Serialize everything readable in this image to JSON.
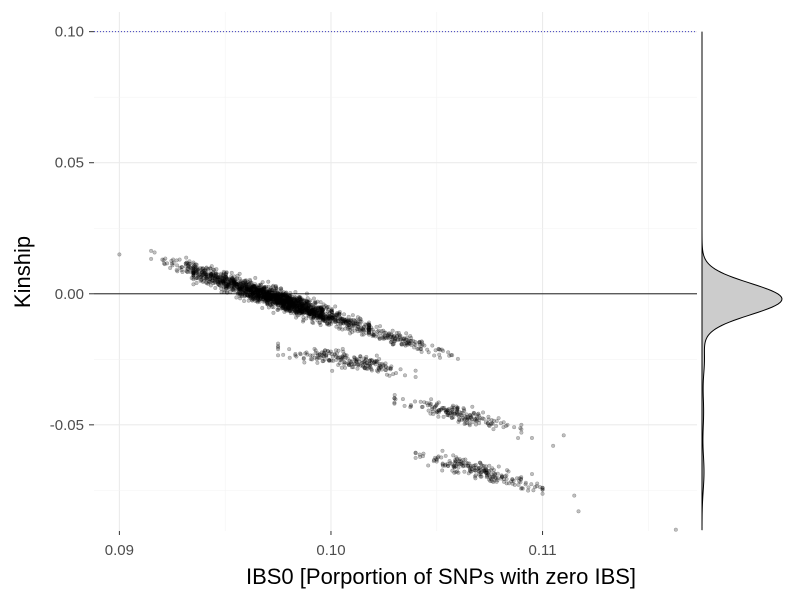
{
  "chart_data": {
    "type": "scatter",
    "xlabel": "IBS0 [Porportion of SNPs with zero IBS]",
    "ylabel": "Kinship",
    "xlim": [
      0.0888,
      0.1173
    ],
    "ylim": [
      -0.0905,
      0.1075
    ],
    "x_ticks": [
      {
        "value": 0.09,
        "label": "0.09"
      },
      {
        "value": 0.1,
        "label": "0.10"
      },
      {
        "value": 0.11,
        "label": "0.11"
      }
    ],
    "y_ticks": [
      {
        "value": 0.1,
        "label": "0.10"
      },
      {
        "value": 0.05,
        "label": "0.05"
      },
      {
        "value": 0.0,
        "label": "0.00"
      },
      {
        "value": -0.05,
        "label": "-0.05"
      }
    ],
    "grid": true,
    "reference_lines": [
      {
        "axis": "y",
        "value": 0.1,
        "style": "dotted",
        "color": "#3f3fbf"
      },
      {
        "axis": "y",
        "value": 0.0,
        "style": "solid",
        "color": "#000000"
      }
    ],
    "series": [
      {
        "point_color": "#000000",
        "point_alpha": 0.25,
        "clusters": [
          {
            "x_range": [
              0.0935,
              0.1018
            ],
            "y_at_start": 0.0085,
            "y_at_end": -0.0135,
            "spread": 0.0035,
            "approx_points": 1600
          },
          {
            "x_range": [
              0.0915,
              0.096
            ],
            "y_at_start": 0.014,
            "y_at_end": 0.003,
            "spread": 0.003,
            "approx_points": 140
          },
          {
            "x_range": [
              0.1,
              0.106
            ],
            "y_at_start": -0.01,
            "y_at_end": -0.024,
            "spread": 0.003,
            "approx_points": 160
          },
          {
            "x_range": [
              0.0975,
              0.104
            ],
            "y_at_start": -0.021,
            "y_at_end": -0.03,
            "spread": 0.003,
            "approx_points": 200
          },
          {
            "x_range": [
              0.103,
              0.109
            ],
            "y_at_start": -0.04,
            "y_at_end": -0.052,
            "spread": 0.003,
            "approx_points": 170
          },
          {
            "x_range": [
              0.104,
              0.11
            ],
            "y_at_start": -0.061,
            "y_at_end": -0.074,
            "spread": 0.003,
            "approx_points": 200
          }
        ],
        "outliers": [
          {
            "x": 0.09,
            "y": 0.015
          },
          {
            "x": 0.109,
            "y": -0.05
          },
          {
            "x": 0.1095,
            "y": -0.055
          },
          {
            "x": 0.1105,
            "y": -0.058
          },
          {
            "x": 0.111,
            "y": -0.054
          },
          {
            "x": 0.1115,
            "y": -0.077
          },
          {
            "x": 0.1117,
            "y": -0.083
          },
          {
            "x": 0.11,
            "y": -0.074
          },
          {
            "x": 0.1163,
            "y": -0.09
          }
        ]
      }
    ],
    "marginal_density": {
      "axis": "y",
      "fill": "#cccccc",
      "stroke": "#000000",
      "y_range": [
        -0.09,
        0.1
      ],
      "peak_y": -0.002,
      "peak_width": 0.006,
      "secondary_bumps": [
        {
          "y": -0.025,
          "height": 0.03,
          "width": 0.006
        },
        {
          "y": -0.045,
          "height": 0.02,
          "width": 0.007
        },
        {
          "y": -0.068,
          "height": 0.025,
          "width": 0.007
        }
      ]
    }
  }
}
